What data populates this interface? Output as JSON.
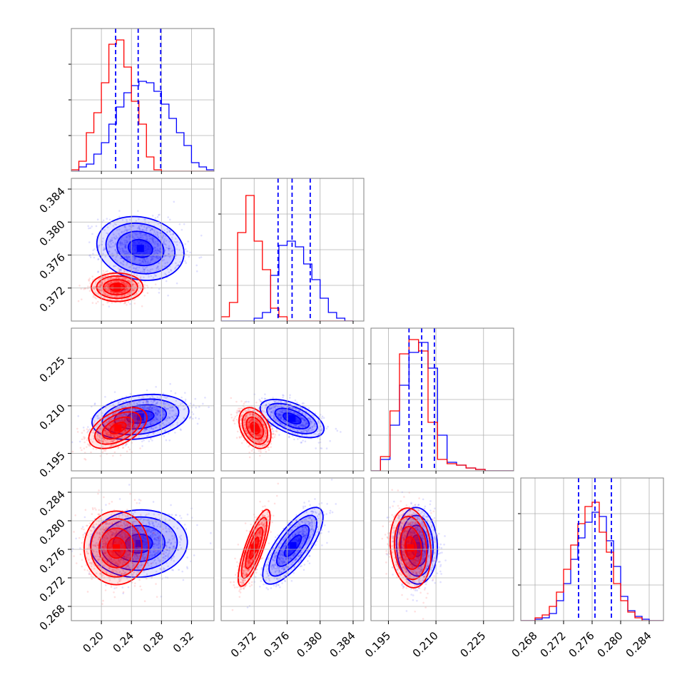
{
  "chart_data": {
    "type": "corner",
    "parameters": 4,
    "colors": {
      "series_a": "#0000ff",
      "series_b": "#ff0000",
      "grid": "#b0b0b0",
      "frame": "#808080"
    },
    "grid": true,
    "series": [
      {
        "color": "#0000ff"
      },
      {
        "color": "#ff0000"
      }
    ],
    "axes": [
      {
        "range": [
          0.16,
          0.35
        ],
        "ticks": [
          0.2,
          0.24,
          0.28,
          0.32
        ],
        "tick_labels": [
          "0.20",
          "0.24",
          "0.28",
          "0.32"
        ]
      },
      {
        "range": [
          0.368,
          0.3853
        ],
        "ticks": [
          0.372,
          0.376,
          0.38,
          0.384
        ],
        "tick_labels": [
          "0.372",
          "0.376",
          "0.380",
          "0.384"
        ]
      },
      {
        "range": [
          0.1895,
          0.2345
        ],
        "ticks": [
          0.195,
          0.21,
          0.225
        ],
        "tick_labels": [
          "0.195",
          "0.210",
          "0.225"
        ]
      },
      {
        "range": [
          0.266,
          0.286
        ],
        "ticks": [
          0.268,
          0.272,
          0.276,
          0.28,
          0.284
        ],
        "tick_labels": [
          "0.268",
          "0.272",
          "0.276",
          "0.280",
          "0.284"
        ]
      }
    ],
    "quantiles_blue": [
      [
        0.219,
        0.249,
        0.279
      ],
      [
        0.3749,
        0.3766,
        0.3788
      ],
      [
        0.2015,
        0.2055,
        0.2095
      ],
      [
        0.2741,
        0.2764,
        0.2787
      ]
    ],
    "marginals": [
      {
        "bin_edges": [
          0.16,
          0.17,
          0.18,
          0.19,
          0.2,
          0.21,
          0.22,
          0.23,
          0.24,
          0.25,
          0.26,
          0.27,
          0.28,
          0.29,
          0.3,
          0.31,
          0.32,
          0.33,
          0.34,
          0.35
        ],
        "blue": [
          0.0,
          0.03,
          0.05,
          0.12,
          0.2,
          0.33,
          0.45,
          0.55,
          0.6,
          0.63,
          0.62,
          0.56,
          0.47,
          0.37,
          0.27,
          0.18,
          0.06,
          0.03,
          0.01
        ],
        "red": [
          0.01,
          0.07,
          0.27,
          0.41,
          0.62,
          0.89,
          0.92,
          0.73,
          0.49,
          0.33,
          0.1,
          0.01,
          0.0,
          0.0,
          0.0,
          0.0,
          0.0,
          0.0,
          0.0
        ]
      },
      {
        "bin_edges": [
          0.368,
          0.369,
          0.37,
          0.371,
          0.372,
          0.373,
          0.374,
          0.375,
          0.376,
          0.377,
          0.378,
          0.379,
          0.38,
          0.381,
          0.382,
          0.383,
          0.384
        ],
        "blue": [
          0.0,
          0.0,
          0.0,
          0.0,
          0.02,
          0.06,
          0.32,
          0.53,
          0.56,
          0.52,
          0.4,
          0.29,
          0.16,
          0.06,
          0.02,
          0.0
        ],
        "red": [
          0.03,
          0.13,
          0.62,
          0.88,
          0.56,
          0.36,
          0.09,
          0.03,
          0.0,
          0.0,
          0.0,
          0.0,
          0.0,
          0.0,
          0.0,
          0.0
        ]
      },
      {
        "bin_edges": [
          0.1895,
          0.1925,
          0.1955,
          0.1985,
          0.2015,
          0.2045,
          0.2075,
          0.2105,
          0.2135,
          0.2165,
          0.2195,
          0.2225,
          0.2255,
          0.2285,
          0.2315,
          0.2345
        ],
        "blue": [
          0.0,
          0.08,
          0.32,
          0.6,
          0.83,
          0.9,
          0.72,
          0.25,
          0.06,
          0.04,
          0.02,
          0.01,
          0.0,
          0.0,
          0.0
        ],
        "red": [
          0.0,
          0.1,
          0.42,
          0.82,
          0.92,
          0.84,
          0.34,
          0.08,
          0.05,
          0.04,
          0.02,
          0.01,
          0.0,
          0.0,
          0.0
        ]
      },
      {
        "bin_edges": [
          0.266,
          0.267,
          0.268,
          0.269,
          0.27,
          0.271,
          0.272,
          0.273,
          0.274,
          0.275,
          0.276,
          0.277,
          0.278,
          0.279,
          0.28,
          0.281,
          0.282,
          0.283,
          0.284,
          0.285,
          0.286
        ],
        "blue": [
          0.0,
          0.0,
          0.01,
          0.02,
          0.05,
          0.14,
          0.26,
          0.43,
          0.58,
          0.69,
          0.76,
          0.73,
          0.56,
          0.38,
          0.17,
          0.07,
          0.03,
          0.01,
          0.0,
          0.0
        ],
        "red": [
          0.0,
          0.0,
          0.02,
          0.04,
          0.1,
          0.2,
          0.36,
          0.53,
          0.68,
          0.8,
          0.83,
          0.62,
          0.48,
          0.26,
          0.14,
          0.06,
          0.02,
          0.0,
          0.0,
          0.0
        ]
      }
    ],
    "joint_2d": [
      {
        "row": 1,
        "col": 0,
        "blue": {
          "mean": [
            0.252,
            0.3768
          ],
          "sd": [
            0.027,
            0.0018
          ],
          "rho": -0.15
        },
        "red": {
          "mean": [
            0.221,
            0.3721
          ],
          "sd": [
            0.016,
            0.0008
          ],
          "rho": 0.0
        }
      },
      {
        "row": 2,
        "col": 0,
        "blue": {
          "mean": [
            0.252,
            0.2065
          ],
          "sd": [
            0.03,
            0.0033
          ],
          "rho": 0.25
        },
        "red": {
          "mean": [
            0.222,
            0.203
          ],
          "sd": [
            0.018,
            0.003
          ],
          "rho": 0.5
        }
      },
      {
        "row": 2,
        "col": 1,
        "blue": {
          "mean": [
            0.3766,
            0.206
          ],
          "sd": [
            0.0018,
            0.0028
          ],
          "rho": -0.55
        },
        "red": {
          "mean": [
            0.3721,
            0.203
          ],
          "sd": [
            0.0009,
            0.003
          ],
          "rho": -0.35
        }
      },
      {
        "row": 3,
        "col": 0,
        "blue": {
          "mean": [
            0.25,
            0.2768
          ],
          "sd": [
            0.03,
            0.0022
          ],
          "rho": 0.05
        },
        "red": {
          "mean": [
            0.22,
            0.2762
          ],
          "sd": [
            0.02,
            0.0024
          ],
          "rho": 0.0
        }
      },
      {
        "row": 3,
        "col": 1,
        "blue": {
          "mean": [
            0.3767,
            0.2765
          ],
          "sd": [
            0.0017,
            0.0025
          ],
          "rho": 0.75
        },
        "red": {
          "mean": [
            0.372,
            0.2762
          ],
          "sd": [
            0.0009,
            0.0025
          ],
          "rho": 0.8
        }
      },
      {
        "row": 3,
        "col": 2,
        "blue": {
          "mean": [
            0.204,
            0.2765
          ],
          "sd": [
            0.003,
            0.0025
          ],
          "rho": -0.05
        },
        "red": {
          "mean": [
            0.202,
            0.2762
          ],
          "sd": [
            0.003,
            0.0026
          ],
          "rho": -0.15
        }
      }
    ]
  }
}
